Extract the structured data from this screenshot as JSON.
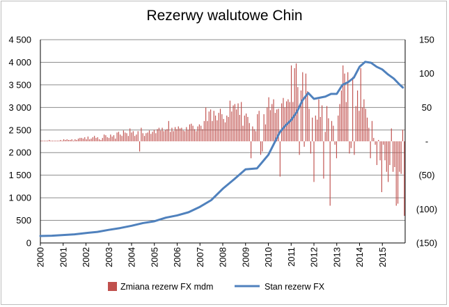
{
  "chart_data": {
    "type": "bar+line",
    "title": "Rezerwy walutowe Chin",
    "x_ticks": [
      "2000",
      "2001",
      "2002",
      "2003",
      "2004",
      "2005",
      "2006",
      "2007",
      "2008",
      "2009",
      "2010",
      "2011",
      "2012",
      "2013",
      "2014",
      "2015"
    ],
    "y_left": {
      "ticks": [
        "0",
        "500",
        "1 000",
        "1 500",
        "2 000",
        "2 500",
        "3 000",
        "3 500",
        "4 000",
        "4 500"
      ],
      "lim": [
        0,
        4500
      ]
    },
    "y_right": {
      "ticks": [
        "(150)",
        "(100)",
        "(50)",
        "-",
        "50",
        "100",
        "150"
      ],
      "lim": [
        -150,
        150
      ]
    },
    "grid": "horizontal",
    "legend_position": "bottom",
    "series": [
      {
        "name": "Zmiana rezerw FX mdm",
        "kind": "bar",
        "axis": "right",
        "color": "#c0504d",
        "values": [
          1,
          1,
          1,
          1,
          1,
          2,
          1,
          1,
          1,
          1,
          1,
          1,
          2,
          1,
          3,
          2,
          3,
          2,
          2,
          3,
          1,
          3,
          2,
          4,
          5,
          5,
          4,
          6,
          3,
          7,
          3,
          4,
          6,
          8,
          5,
          6,
          3,
          2,
          5,
          10,
          9,
          6,
          5,
          10,
          7,
          9,
          4,
          13,
          14,
          10,
          8,
          16,
          13,
          12,
          8,
          19,
          13,
          15,
          8,
          10,
          15,
          -15,
          20,
          12,
          8,
          12,
          13,
          16,
          11,
          14,
          17,
          12,
          18,
          20,
          16,
          20,
          15,
          17,
          18,
          30,
          14,
          20,
          15,
          21,
          18,
          22,
          19,
          20,
          16,
          15,
          21,
          17,
          25,
          26,
          23,
          18,
          15,
          22,
          25,
          23,
          18,
          30,
          50,
          30,
          44,
          47,
          30,
          45,
          38,
          31,
          42,
          48,
          40,
          33,
          28,
          38,
          36,
          60,
          44,
          53,
          55,
          47,
          56,
          39,
          58,
          23,
          38,
          41,
          36,
          27,
          -25,
          22,
          18,
          15,
          40,
          45,
          -20,
          -15,
          40,
          25,
          50,
          65,
          46,
          55,
          62,
          42,
          47,
          48,
          -52,
          56,
          64,
          50,
          59,
          62,
          58,
          112,
          58,
          108,
          115,
          80,
          -20,
          75,
          102,
          -8,
          100,
          74,
          48,
          -18,
          35,
          -60,
          38,
          32,
          62,
          36,
          53,
          -55,
          14,
          52,
          34,
          -95,
          30,
          23,
          -5,
          -25,
          38,
          55,
          75,
          112,
          100,
          58,
          102,
          -18,
          -10,
          95,
          -20,
          52,
          75,
          45,
          108,
          50,
          62,
          48,
          35,
          20,
          -25,
          30,
          5,
          -5,
          -35,
          2,
          -28,
          -75,
          -5,
          -28,
          -45,
          -60,
          -35,
          19,
          -45,
          -38,
          -95,
          -92,
          -45,
          -48,
          17,
          -110
        ]
      },
      {
        "name": "Stan rezerw FX",
        "kind": "line",
        "axis": "left",
        "color": "#4f81bd",
        "x": [
          2000,
          2000.5,
          2001,
          2001.5,
          2002,
          2002.5,
          2003,
          2003.5,
          2004,
          2004.5,
          2005,
          2005.5,
          2006,
          2006.5,
          2007,
          2007.5,
          2008,
          2008.5,
          2008.75,
          2009,
          2009.5,
          2010,
          2010.5,
          2010.75,
          2011,
          2011.25,
          2011.5,
          2011.75,
          2012,
          2012.5,
          2012.75,
          2013,
          2013.25,
          2013.5,
          2013.75,
          2014,
          2014.25,
          2014.5,
          2014.75,
          2015,
          2015.25,
          2015.5,
          2015.75,
          2015.9
        ],
        "values": [
          155,
          160,
          175,
          190,
          220,
          245,
          290,
          330,
          380,
          440,
          480,
          560,
          610,
          680,
          800,
          950,
          1200,
          1410,
          1520,
          1630,
          1650,
          1950,
          2450,
          2600,
          2720,
          2900,
          3160,
          3320,
          3190,
          3240,
          3300,
          3300,
          3500,
          3560,
          3660,
          3900,
          4010,
          3990,
          3900,
          3840,
          3730,
          3640,
          3510,
          3440
        ]
      }
    ]
  }
}
